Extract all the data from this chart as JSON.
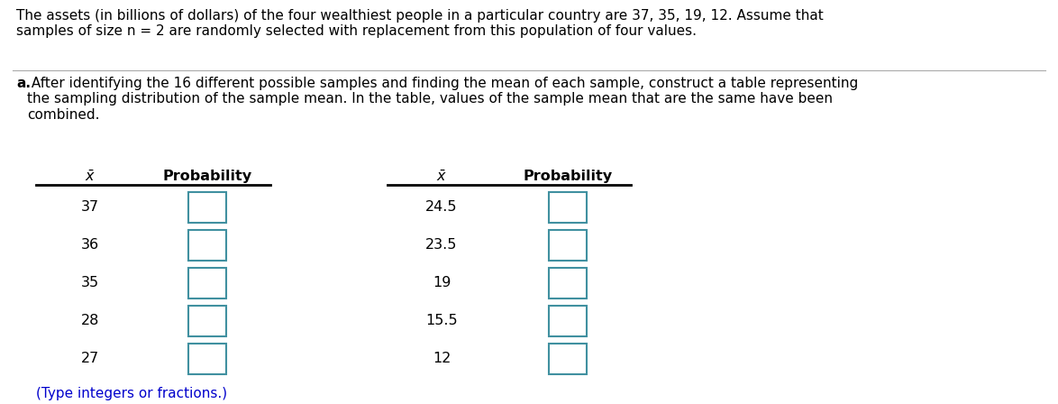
{
  "title_text": "The assets (in billions of dollars) of the four wealthiest people in a particular country are 37, 35, 19, 12. Assume that\nsamples of size n = 2 are randomly selected with replacement from this population of four values.",
  "part_a_label": "a.",
  "part_a_text": " After identifying the 16 different possible samples and finding the mean of each sample, construct a table representing\nthe sampling distribution of the sample mean. In the table, values of the sample mean that are the same have been\ncombined.",
  "footer_text": "(Type integers or fractions.)",
  "left_x_values": [
    "37",
    "36",
    "35",
    "28",
    "27"
  ],
  "right_x_values": [
    "24.5",
    "23.5",
    "19",
    "15.5",
    "12"
  ],
  "col_header_prob": "Probability",
  "box_color": "#4090A0",
  "box_fill": "#FFFFFF",
  "text_color": "#000000",
  "footer_color": "#0000CC",
  "bg_color": "#FFFFFF",
  "font_size_title": 11.0,
  "font_size_part": 11.0,
  "font_size_table": 11.5,
  "font_size_header": 11.5,
  "font_size_footer": 11.0
}
